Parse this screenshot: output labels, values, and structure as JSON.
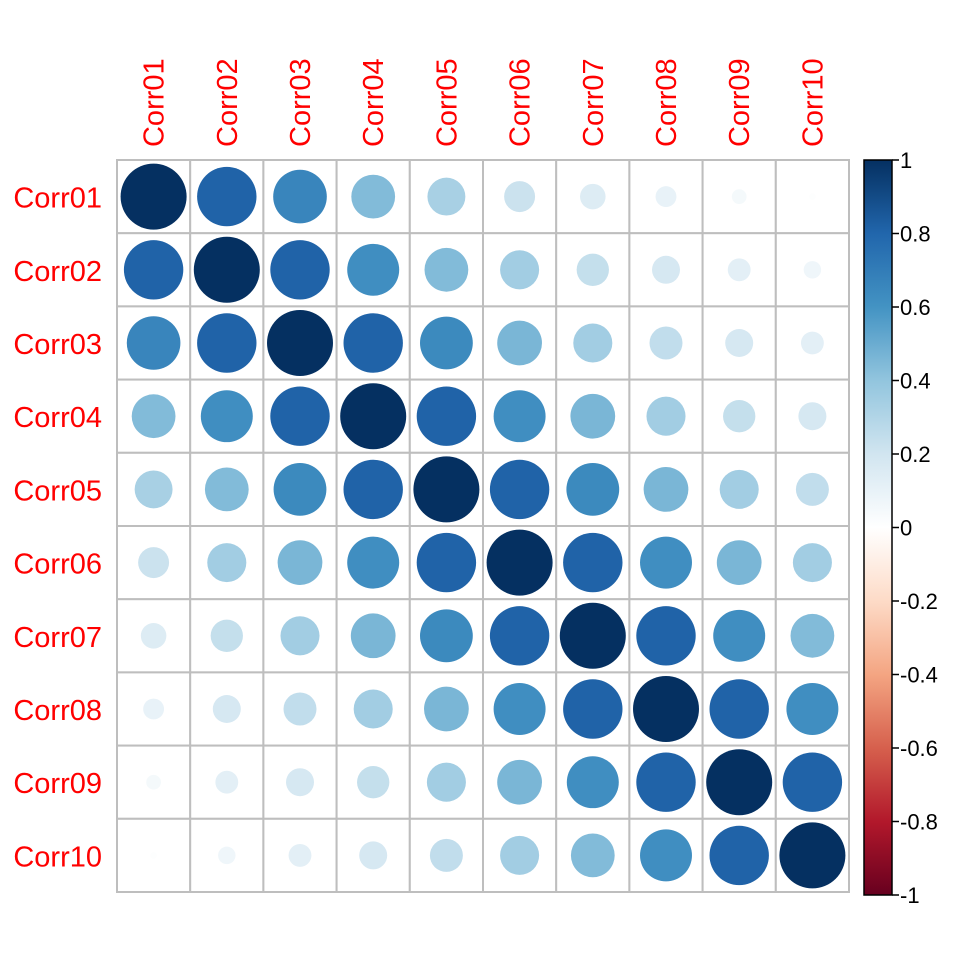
{
  "chart_data": {
    "type": "heatmap",
    "method": "circle",
    "row_labels": [
      "Corr01",
      "Corr02",
      "Corr03",
      "Corr04",
      "Corr05",
      "Corr06",
      "Corr07",
      "Corr08",
      "Corr09",
      "Corr10"
    ],
    "col_labels": [
      "Corr01",
      "Corr02",
      "Corr03",
      "Corr04",
      "Corr05",
      "Corr06",
      "Corr07",
      "Corr08",
      "Corr09",
      "Corr10"
    ],
    "values": [
      [
        1.0,
        0.81,
        0.66,
        0.44,
        0.33,
        0.22,
        0.15,
        0.1,
        0.05,
        0.01
      ],
      [
        0.81,
        1.0,
        0.81,
        0.62,
        0.44,
        0.35,
        0.24,
        0.18,
        0.12,
        0.07
      ],
      [
        0.66,
        0.81,
        1.0,
        0.81,
        0.64,
        0.46,
        0.35,
        0.25,
        0.18,
        0.12
      ],
      [
        0.44,
        0.62,
        0.81,
        1.0,
        0.81,
        0.62,
        0.46,
        0.35,
        0.24,
        0.18
      ],
      [
        0.33,
        0.44,
        0.64,
        0.81,
        1.0,
        0.81,
        0.64,
        0.46,
        0.35,
        0.25
      ],
      [
        0.22,
        0.35,
        0.46,
        0.62,
        0.81,
        1.0,
        0.81,
        0.62,
        0.46,
        0.35
      ],
      [
        0.15,
        0.24,
        0.35,
        0.46,
        0.64,
        0.81,
        1.0,
        0.81,
        0.62,
        0.44
      ],
      [
        0.1,
        0.18,
        0.25,
        0.35,
        0.46,
        0.62,
        0.81,
        1.0,
        0.81,
        0.62
      ],
      [
        0.05,
        0.12,
        0.18,
        0.24,
        0.35,
        0.46,
        0.62,
        0.81,
        1.0,
        0.81
      ],
      [
        0.01,
        0.07,
        0.12,
        0.18,
        0.25,
        0.35,
        0.44,
        0.62,
        0.81,
        1.0
      ]
    ],
    "label_color": "#FF0000",
    "grid_color": "#BEBEBE",
    "colorbar": {
      "range": [
        -1,
        1
      ],
      "ticks": [
        "1",
        "0.8",
        "0.6",
        "0.4",
        "0.2",
        "0",
        "-0.2",
        "-0.4",
        "-0.6",
        "-0.8",
        "-1"
      ],
      "colors": [
        "#67001F",
        "#B2182B",
        "#D6604D",
        "#F4A582",
        "#FDDBC7",
        "#FFFFFF",
        "#D1E5F0",
        "#92C5DE",
        "#4393C3",
        "#2166AC",
        "#053061"
      ]
    }
  }
}
